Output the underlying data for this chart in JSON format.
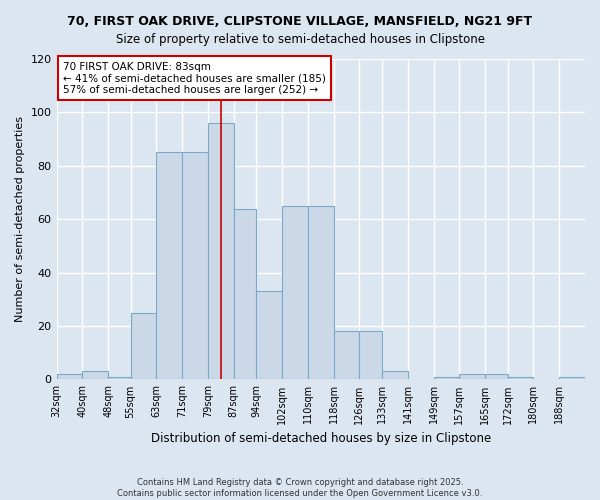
{
  "title1": "70, FIRST OAK DRIVE, CLIPSTONE VILLAGE, MANSFIELD, NG21 9FT",
  "title2": "Size of property relative to semi-detached houses in Clipstone",
  "xlabel": "Distribution of semi-detached houses by size in Clipstone",
  "ylabel": "Number of semi-detached properties",
  "bin_labels": [
    "32sqm",
    "40sqm",
    "48sqm",
    "55sqm",
    "63sqm",
    "71sqm",
    "79sqm",
    "87sqm",
    "94sqm",
    "102sqm",
    "110sqm",
    "118sqm",
    "126sqm",
    "133sqm",
    "141sqm",
    "149sqm",
    "157sqm",
    "165sqm",
    "172sqm",
    "180sqm",
    "188sqm"
  ],
  "bar_heights": [
    2,
    3,
    1,
    25,
    85,
    85,
    96,
    64,
    33,
    65,
    65,
    18,
    18,
    3,
    0,
    1,
    2,
    2,
    1,
    0,
    1
  ],
  "bar_color": "#cad8e8",
  "bar_edge_color": "#7aaac8",
  "bin_edges": [
    32,
    40,
    48,
    55,
    63,
    71,
    79,
    87,
    94,
    102,
    110,
    118,
    126,
    133,
    141,
    149,
    157,
    165,
    172,
    180,
    188,
    196
  ],
  "vline_x": 83,
  "vline_color": "#cc0000",
  "annotation_text": "70 FIRST OAK DRIVE: 83sqm\n← 41% of semi-detached houses are smaller (185)\n57% of semi-detached houses are larger (252) →",
  "annotation_box_facecolor": "#ffffff",
  "annotation_box_edgecolor": "#cc0000",
  "footer": "Contains HM Land Registry data © Crown copyright and database right 2025.\nContains public sector information licensed under the Open Government Licence v3.0.",
  "ylim": [
    0,
    120
  ],
  "yticks": [
    0,
    20,
    40,
    60,
    80,
    100,
    120
  ],
  "background_color": "#dce6f0",
  "grid_color": "#ffffff"
}
